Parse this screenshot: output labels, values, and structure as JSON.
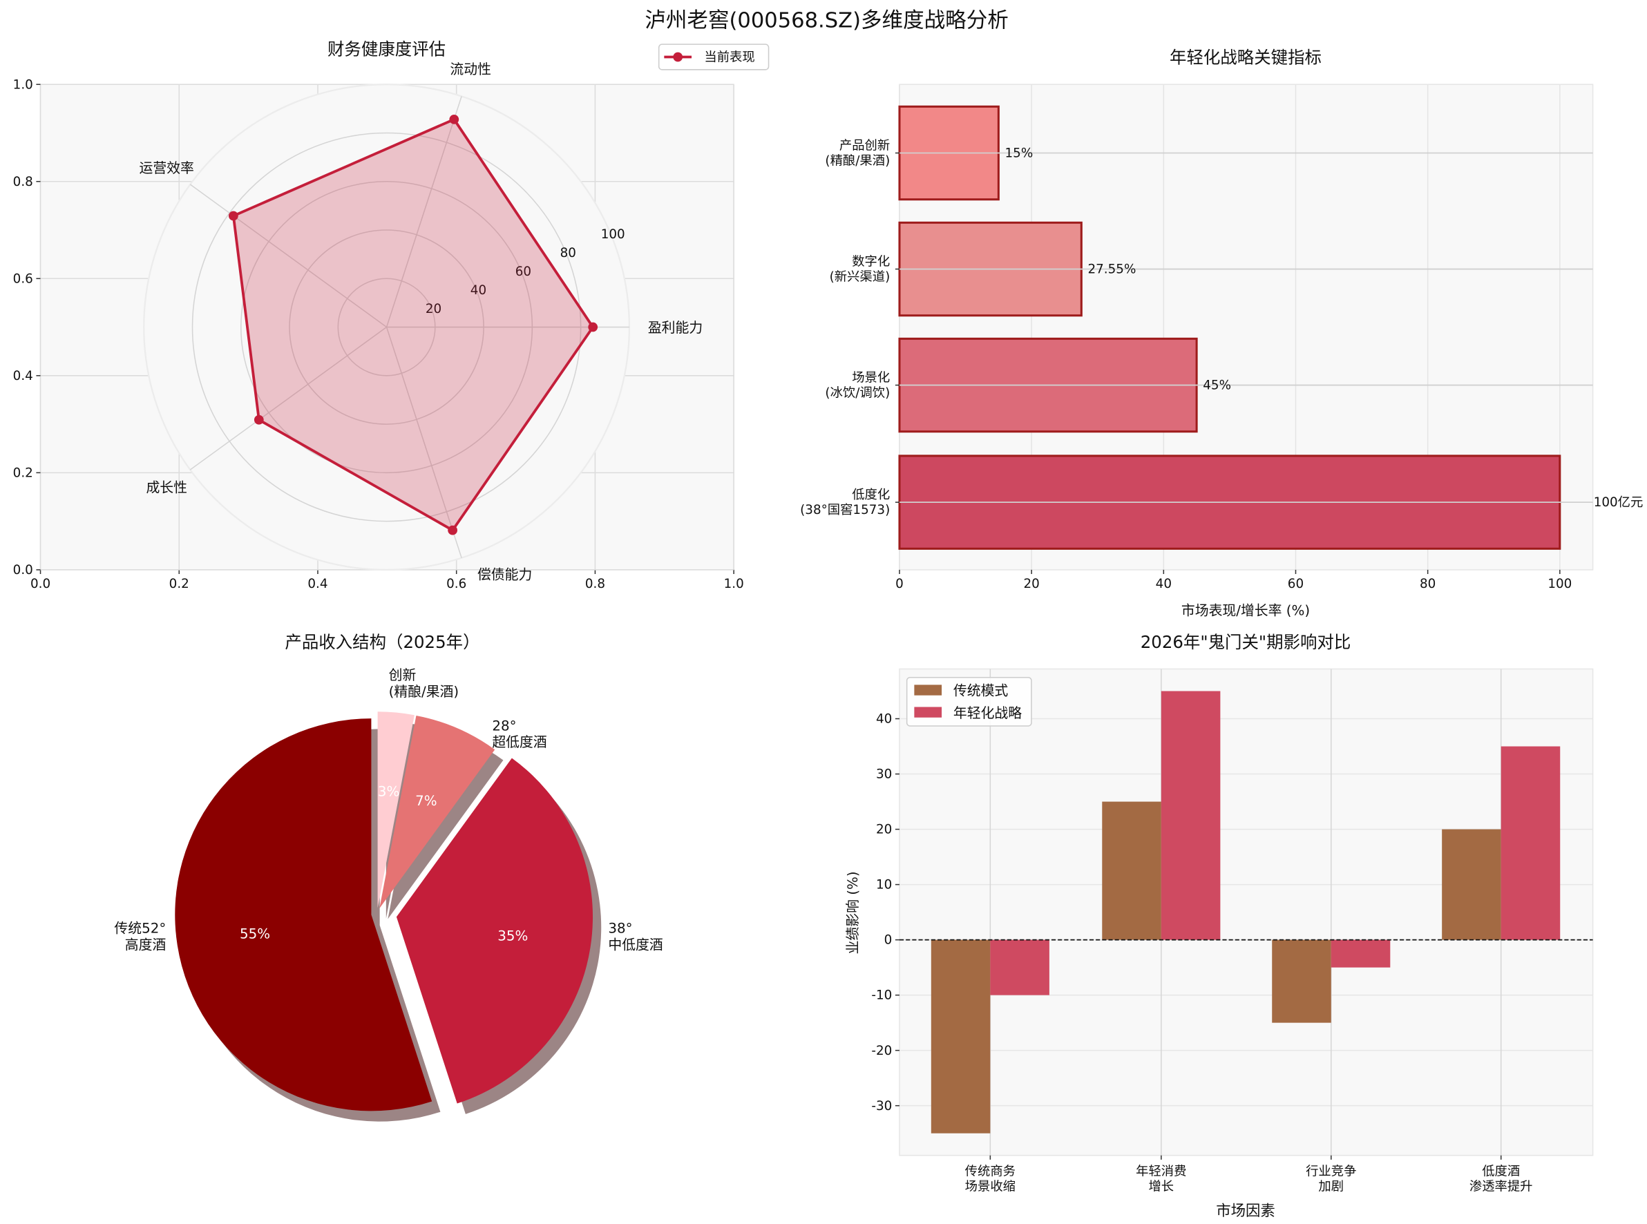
{
  "figure": {
    "title": "泸州老窖(000568.SZ)多维度战略分析"
  },
  "chart_data": [
    {
      "type": "radar",
      "title": "财务健康度评估",
      "categories": [
        "盈利能力",
        "流动性",
        "运营效率",
        "成长性",
        "偿债能力"
      ],
      "series": [
        {
          "name": "当前表现",
          "values": [
            85,
            90,
            78,
            65,
            88
          ]
        }
      ],
      "rticks": [
        "20",
        "40",
        "60",
        "80",
        "100"
      ],
      "rlim": [
        0,
        100
      ],
      "background_axis_ticks": {
        "x": [
          "0.0",
          "0.2",
          "0.4",
          "0.6",
          "0.8",
          "1.0"
        ],
        "y": [
          "0.0",
          "0.2",
          "0.4",
          "0.6",
          "0.8",
          "1.0"
        ]
      },
      "legend": "top-right",
      "colors": {
        "line": "#C41E3A",
        "fill": "#C41E3A"
      }
    },
    {
      "type": "bar",
      "orientation": "horizontal",
      "title": "年轻化战略关键指标",
      "categories": [
        "产品创新\n(精酿/果酒)",
        "数字化\n(新兴渠道)",
        "场景化\n(冰饮/调饮)",
        "低度化\n(38°国窖1573)"
      ],
      "values": [
        15,
        27.55,
        45,
        100
      ],
      "data_labels": [
        "15%",
        "27.55%",
        "45%",
        "100亿元"
      ],
      "xlabel": "市场表现/增长率 (%)",
      "xticks": [
        "0",
        "20",
        "40",
        "60",
        "80",
        "100"
      ],
      "xlim": [
        0,
        105
      ],
      "grid": true,
      "colors": [
        "#F28888",
        "#E88F8F",
        "#DC6B79",
        "#CD4860"
      ],
      "edge_color": "#9E1C1C"
    },
    {
      "type": "pie",
      "title": "产品收入结构（2025年）",
      "labels": [
        "传统52°\n高度酒",
        "38°\n中低度酒",
        "28°\n超低度酒",
        "创新\n(精酿/果酒)"
      ],
      "values": [
        55,
        35,
        7,
        3
      ],
      "pct_labels": [
        "55%",
        "35%",
        "7%",
        "3%"
      ],
      "explode": [
        0.03,
        0.1,
        0.03,
        0.03
      ],
      "shadow": true,
      "start_angle": 90,
      "colors": [
        "#8B0000",
        "#C41E3A",
        "#E57373",
        "#FFCDD2"
      ]
    },
    {
      "type": "bar",
      "title": "2026年\"鬼门关\"期影响对比",
      "categories": [
        "传统商务\n场景收缩",
        "年轻消费\n增长",
        "行业竞争\n加剧",
        "低度酒\n渗透率提升"
      ],
      "series": [
        {
          "name": "传统模式",
          "values": [
            -35,
            25,
            -15,
            20
          ]
        },
        {
          "name": "年轻化战略",
          "values": [
            -10,
            45,
            -5,
            35
          ]
        }
      ],
      "xlabel": "市场因素",
      "ylabel": "业绩影响 (%)",
      "yticks": [
        "-30",
        "-20",
        "-10",
        "0",
        "10",
        "20",
        "30",
        "40"
      ],
      "ylim": [
        -39,
        49
      ],
      "zero_line": "dashed",
      "legend": "top-left",
      "grid": true,
      "colors": [
        "#A36A43",
        "#CF4A61"
      ]
    }
  ]
}
